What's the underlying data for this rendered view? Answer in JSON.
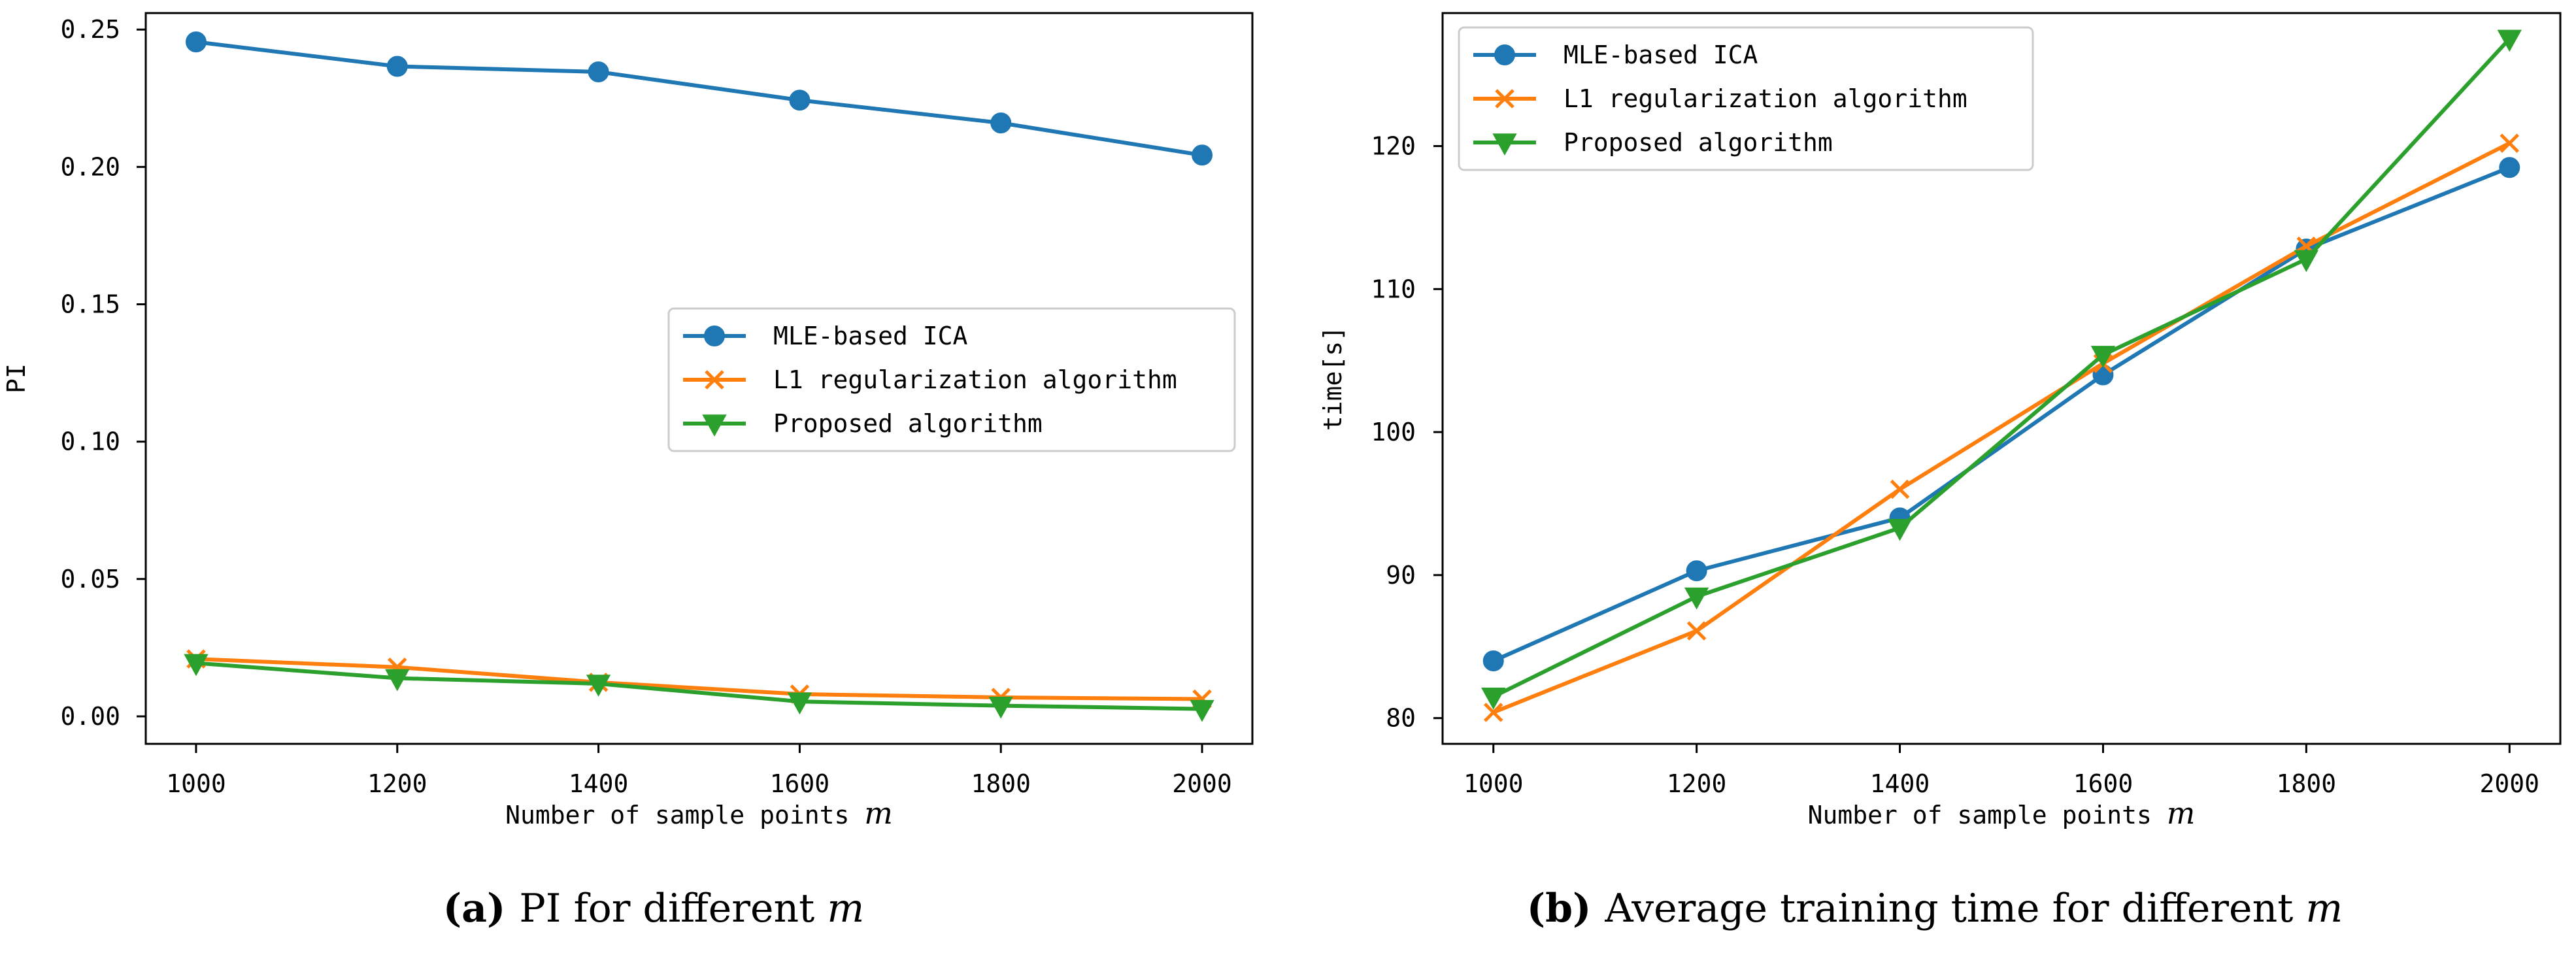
{
  "chart_data": [
    {
      "type": "line",
      "panel_id": "a",
      "x": [
        1000,
        1200,
        1400,
        1600,
        1800,
        2000
      ],
      "xlabel": "Number of sample points",
      "xlabel_symbol": "m",
      "ylabel": "PI",
      "xlim": [
        950,
        2050
      ],
      "ylim": [
        -0.01,
        0.256
      ],
      "xticks": [
        "1000",
        "1200",
        "1400",
        "1600",
        "1800",
        "2000"
      ],
      "yticks": [
        "0.00",
        "0.05",
        "0.10",
        "0.15",
        "0.20",
        "0.25"
      ],
      "ytick_values": [
        0,
        0.05,
        0.1,
        0.15,
        0.2,
        0.25
      ],
      "grid": false,
      "legend_placement": "center-right",
      "series": [
        {
          "name": "MLE-based ICA",
          "color": "#1f77b4",
          "marker": "circle",
          "values": [
            0.2455,
            0.2366,
            0.2346,
            0.2243,
            0.216,
            0.2043
          ]
        },
        {
          "name": "L1 regularization algorithm",
          "color": "#ff7f0e",
          "marker": "x",
          "values": [
            0.0209,
            0.0179,
            0.0124,
            0.0081,
            0.0069,
            0.0063
          ]
        },
        {
          "name": "Proposed algorithm",
          "color": "#2ca02c",
          "marker": "triangle-down",
          "values": [
            0.0194,
            0.0139,
            0.0119,
            0.0054,
            0.0039,
            0.0027
          ]
        }
      ],
      "caption": {
        "letter": "(a)",
        "text": "PI for different",
        "symbol": "m"
      }
    },
    {
      "type": "line",
      "panel_id": "b",
      "x": [
        1000,
        1200,
        1400,
        1600,
        1800,
        2000
      ],
      "xlabel": "Number of sample points",
      "xlabel_symbol": "m",
      "ylabel": "time[s]",
      "xlim": [
        950,
        2050
      ],
      "ylim": [
        78.2,
        129.3
      ],
      "xticks": [
        "1000",
        "1200",
        "1400",
        "1600",
        "1800",
        "2000"
      ],
      "yticks": [
        "80",
        "90",
        "100",
        "110",
        "120"
      ],
      "ytick_values": [
        80,
        90,
        100,
        110,
        120
      ],
      "grid": false,
      "legend_placement": "top-left",
      "series": [
        {
          "name": "MLE-based ICA",
          "color": "#1f77b4",
          "marker": "circle",
          "values": [
            84.0,
            90.3,
            94.0,
            104.0,
            112.8,
            118.5
          ]
        },
        {
          "name": "L1 regularization algorithm",
          "color": "#ff7f0e",
          "marker": "x",
          "values": [
            80.4,
            86.1,
            96.0,
            104.8,
            113.0,
            120.2
          ]
        },
        {
          "name": "Proposed algorithm",
          "color": "#2ca02c",
          "marker": "triangle-down",
          "values": [
            81.5,
            88.5,
            93.3,
            105.4,
            112.1,
            127.5
          ]
        }
      ],
      "caption": {
        "letter": "(b)",
        "text": "Average training time for different",
        "symbol": "m"
      }
    }
  ]
}
